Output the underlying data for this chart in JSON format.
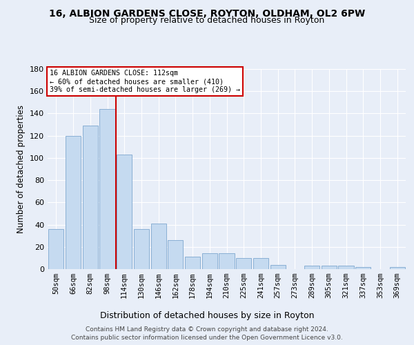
{
  "title1": "16, ALBION GARDENS CLOSE, ROYTON, OLDHAM, OL2 6PW",
  "title2": "Size of property relative to detached houses in Royton",
  "xlabel": "Distribution of detached houses by size in Royton",
  "ylabel": "Number of detached properties",
  "categories": [
    "50sqm",
    "66sqm",
    "82sqm",
    "98sqm",
    "114sqm",
    "130sqm",
    "146sqm",
    "162sqm",
    "178sqm",
    "194sqm",
    "210sqm",
    "225sqm",
    "241sqm",
    "257sqm",
    "273sqm",
    "289sqm",
    "305sqm",
    "321sqm",
    "337sqm",
    "353sqm",
    "369sqm"
  ],
  "values": [
    36,
    120,
    129,
    144,
    103,
    36,
    41,
    26,
    11,
    14,
    14,
    10,
    10,
    4,
    0,
    3,
    3,
    3,
    2,
    0,
    2
  ],
  "bar_color": "#c5daf0",
  "bar_edge_color": "#89afd4",
  "vline_x": 3.5,
  "annotation_line1": "16 ALBION GARDENS CLOSE: 112sqm",
  "annotation_line2": "← 60% of detached houses are smaller (410)",
  "annotation_line3": "39% of semi-detached houses are larger (269) →",
  "annotation_box_facecolor": "#ffffff",
  "annotation_box_edgecolor": "#cc0000",
  "vline_color": "#cc0000",
  "ylim": [
    0,
    180
  ],
  "yticks": [
    0,
    20,
    40,
    60,
    80,
    100,
    120,
    140,
    160,
    180
  ],
  "footer1": "Contains HM Land Registry data © Crown copyright and database right 2024.",
  "footer2": "Contains public sector information licensed under the Open Government Licence v3.0.",
  "bg_color": "#e8eef8",
  "grid_color": "#ffffff"
}
